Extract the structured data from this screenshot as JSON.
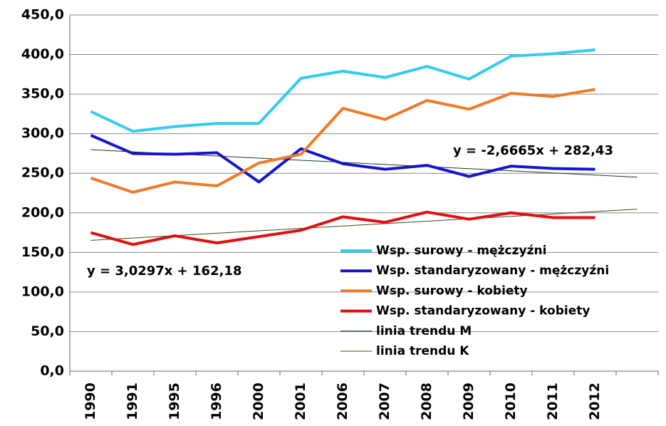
{
  "chart_data": {
    "type": "line",
    "categories": [
      "1990",
      "1991",
      "1995",
      "1996",
      "2000",
      "2001",
      "2006",
      "2007",
      "2008",
      "2009",
      "2010",
      "2011",
      "2012",
      null
    ],
    "series": [
      {
        "name": "Wsp. surowy  - mężczyźni",
        "color": "#33ccee",
        "width": 4,
        "values": [
          328,
          303,
          309,
          313,
          313,
          370,
          379,
          371,
          385,
          369,
          398,
          401,
          406,
          null
        ]
      },
      {
        "name": "Wsp. standaryzowany  - mężczyźni",
        "color": "#1515cc",
        "width": 4,
        "values": [
          298,
          275,
          274,
          276,
          239,
          281,
          262,
          255,
          260,
          246,
          259,
          256,
          255,
          null
        ]
      },
      {
        "name": "Wsp. surowy - kobiety",
        "color": "#f07a28",
        "width": 4,
        "values": [
          244,
          226,
          239,
          234,
          263,
          274,
          332,
          318,
          342,
          331,
          351,
          347,
          356,
          null
        ]
      },
      {
        "name": "Wsp. standaryzowany  - kobiety",
        "color": "#e01010",
        "width": 4,
        "values": [
          175,
          160,
          171,
          162,
          170,
          178,
          195,
          188,
          201,
          192,
          200,
          194,
          194,
          null
        ]
      },
      {
        "name": "linia trendu M",
        "color": "#1a3a1a",
        "width": 1,
        "values": [
          279.76,
          277.1,
          274.43,
          271.76,
          269.1,
          266.43,
          263.77,
          261.1,
          258.43,
          255.77,
          253.1,
          250.43,
          247.76,
          245.1
        ]
      },
      {
        "name": "linia trendu K",
        "color": "#3a4a1a",
        "width": 1,
        "values": [
          165.21,
          168.24,
          171.27,
          174.3,
          177.33,
          180.36,
          183.39,
          186.42,
          189.45,
          192.48,
          195.51,
          198.54,
          201.57,
          204.6
        ]
      }
    ],
    "annotations": [
      "y = -2,6665x + 282,43",
      "y = 3,0297x + 162,18"
    ],
    "ylim": [
      0,
      450
    ],
    "yticks": [
      {
        "value": 0,
        "label": "0,0"
      },
      {
        "value": 50,
        "label": "50,0"
      },
      {
        "value": 100,
        "label": "100,0"
      },
      {
        "value": 150,
        "label": "150,0"
      },
      {
        "value": 200,
        "label": "200,0"
      },
      {
        "value": 250,
        "label": "250,0"
      },
      {
        "value": 300,
        "label": "300,0"
      },
      {
        "value": 350,
        "label": "350,0"
      },
      {
        "value": 400,
        "label": "400,0"
      },
      {
        "value": 450,
        "label": "450,0"
      }
    ],
    "grid": true
  }
}
